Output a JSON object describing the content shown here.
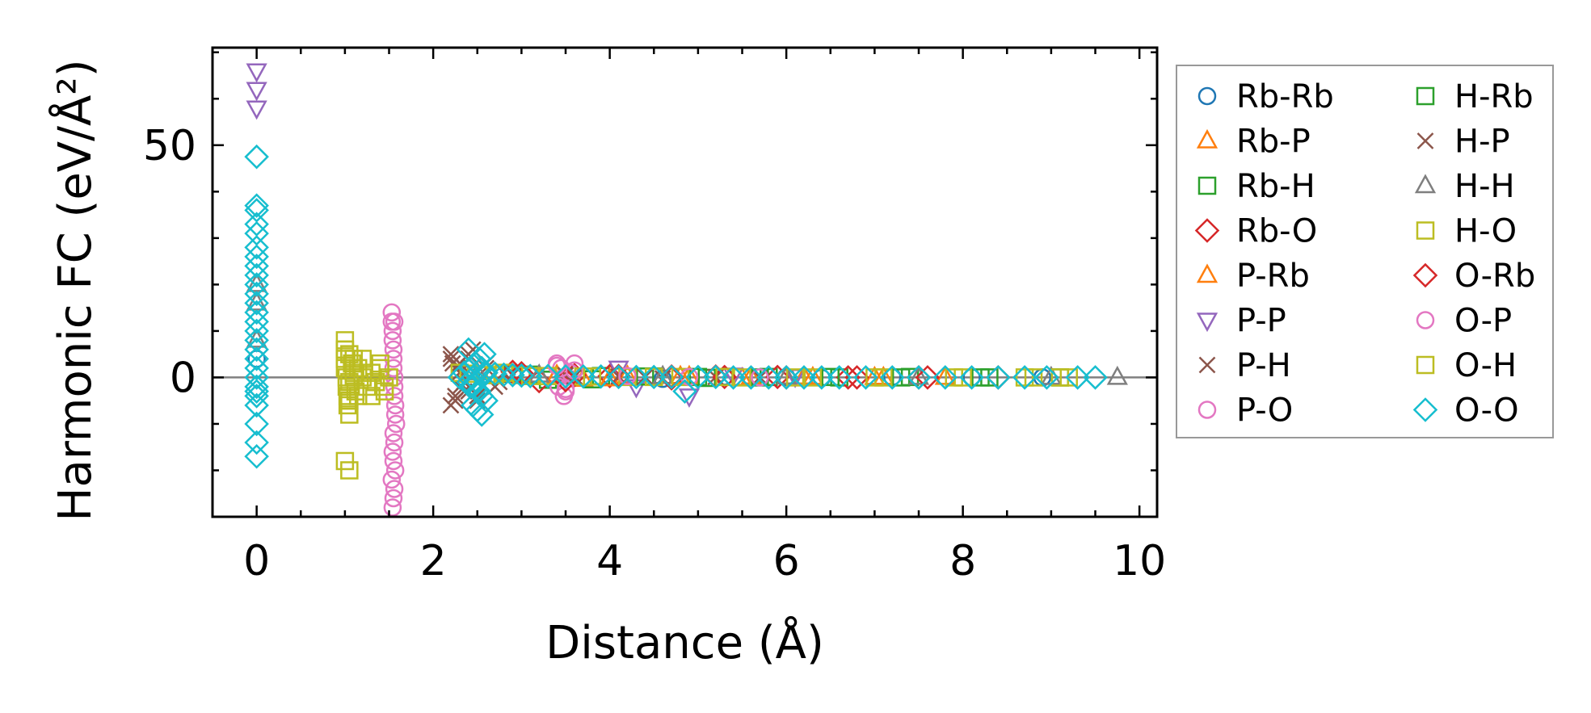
{
  "chart_data": {
    "type": "scatter",
    "xlabel": "Distance (Å)",
    "ylabel": "Harmonic FC (eV/Å²)",
    "xlim": [
      -0.5,
      10.2
    ],
    "ylim": [
      -30,
      71
    ],
    "xticks": [
      0,
      2,
      4,
      6,
      8,
      10
    ],
    "yticks": [
      0,
      50
    ],
    "zero_line": true,
    "legend_position": "outside-right",
    "legend_columns": 2,
    "series": [
      {
        "name": "Rb-Rb",
        "marker": "circle",
        "color": "#1f77b4",
        "x": [
          0,
          4.1,
          4.6,
          5.3,
          6.0,
          6.4,
          7.2,
          8.1,
          8.9
        ],
        "y": [
          4,
          0.2,
          -0.3,
          0.2,
          0.1,
          -0.1,
          0.1,
          0.0,
          0.0
        ]
      },
      {
        "name": "Rb-P",
        "marker": "triangle-up",
        "color": "#ff7f0e",
        "x": [
          3.4,
          3.7,
          4.2,
          4.9,
          5.5,
          6.2,
          7.0,
          7.8
        ],
        "y": [
          0.5,
          -0.4,
          0.3,
          0.2,
          -0.2,
          0.1,
          0.0,
          0.0
        ]
      },
      {
        "name": "Rb-H",
        "marker": "square",
        "color": "#2ca02c",
        "x": [
          2.9,
          3.3,
          3.9,
          4.5,
          5.1,
          5.8,
          6.6,
          7.4,
          8.3,
          9.1
        ],
        "y": [
          0.8,
          -0.5,
          0.3,
          0.2,
          -0.1,
          0.1,
          0.0,
          0.1,
          0.0,
          0.0
        ]
      },
      {
        "name": "Rb-O",
        "marker": "diamond",
        "color": "#d62728",
        "x": [
          2.9,
          3.2,
          3.6,
          4.0,
          4.7,
          5.2,
          5.9,
          6.7,
          7.5,
          8.4
        ],
        "y": [
          1.2,
          -0.8,
          0.5,
          0.3,
          -0.2,
          0.2,
          0.1,
          0.0,
          0.0,
          0.0
        ]
      },
      {
        "name": "P-Rb",
        "marker": "triangle-up",
        "color": "#ff7f0e",
        "x": [
          3.4,
          4.0,
          4.8,
          5.6,
          6.3,
          7.1
        ],
        "y": [
          0.4,
          -0.3,
          0.2,
          0.1,
          0.0,
          0.0
        ]
      },
      {
        "name": "P-P",
        "marker": "triangle-down",
        "color": "#9467bd",
        "x": [
          0,
          0,
          0,
          4.1,
          4.3,
          4.9,
          5.4,
          6.1
        ],
        "y": [
          66,
          62,
          58,
          2.0,
          -2.0,
          -4.0,
          0.5,
          0.2
        ]
      },
      {
        "name": "P-H",
        "marker": "x",
        "color": "#8c564b",
        "x": [
          2.2,
          2.2,
          2.22,
          2.25,
          2.28,
          2.3,
          2.3,
          2.35,
          2.4,
          2.4,
          2.45,
          2.5,
          2.6,
          2.7,
          2.8,
          3.5,
          4.1,
          4.6,
          5.2,
          5.7
        ],
        "y": [
          5,
          -6,
          3,
          -4,
          2,
          -2,
          1,
          -1,
          4,
          -3,
          6,
          -5,
          3,
          -2,
          1,
          0.5,
          0.2,
          -0.2,
          0.1,
          0.0
        ]
      },
      {
        "name": "P-O",
        "marker": "circle",
        "color": "#e377c2",
        "x": [
          1.53,
          1.53,
          1.54,
          1.54,
          1.55,
          1.55,
          1.55,
          1.56,
          1.56,
          1.56,
          1.57,
          1.57,
          1.58,
          1.55,
          1.56,
          1.54,
          1.55,
          1.57,
          1.53,
          1.56,
          1.55,
          1.54,
          1.56,
          3.4,
          3.45,
          3.5,
          3.55,
          3.6,
          3.42,
          3.48
        ],
        "y": [
          14,
          12,
          10,
          8,
          6,
          4,
          2,
          0,
          -2,
          -4,
          -6,
          -8,
          -10,
          -12,
          -14,
          -16,
          -18,
          -20,
          -22,
          -24,
          -26,
          -28,
          12,
          3,
          2,
          -3,
          1,
          3,
          -2,
          -4
        ]
      },
      {
        "name": "H-Rb",
        "marker": "square",
        "color": "#2ca02c",
        "x": [
          3.1,
          3.8,
          4.4,
          5.0,
          5.7,
          6.5,
          7.3,
          8.2
        ],
        "y": [
          0.6,
          -0.4,
          0.2,
          0.1,
          0.0,
          0.1,
          0.0,
          0.0
        ]
      },
      {
        "name": "H-P",
        "marker": "x",
        "color": "#8c564b",
        "x": [
          2.2,
          2.25,
          2.3,
          2.35,
          2.4,
          2.5,
          2.6,
          2.75,
          2.9,
          3.6,
          4.4
        ],
        "y": [
          4,
          -5,
          3,
          -3,
          5,
          -4,
          2,
          -1,
          0.5,
          0.2,
          0.1
        ]
      },
      {
        "name": "H-H",
        "marker": "triangle-up",
        "color": "#7f7f7f",
        "x": [
          0,
          0,
          0,
          2.5,
          3.2,
          4.6,
          6.0,
          7.5,
          9.0,
          9.75
        ],
        "y": [
          20,
          16,
          8,
          1,
          0.5,
          0.2,
          0.1,
          0.0,
          0.0,
          0.0
        ]
      },
      {
        "name": "H-O",
        "marker": "square",
        "color": "#bcbd22",
        "x": [
          1.0,
          1.0,
          1.0,
          1.0,
          1.02,
          1.02,
          1.03,
          1.03,
          1.05,
          1.05,
          1.05,
          1.08,
          1.1,
          1.12,
          1.15,
          1.2,
          1.25,
          1.3,
          1.35,
          1.4,
          1.45,
          1.5,
          1.2,
          1.3,
          1.4,
          1.45,
          1.0,
          1.05,
          1.1,
          2.3,
          2.6,
          2.8,
          3.0,
          3.3,
          3.7,
          4.2,
          4.8,
          5.5,
          6.3,
          7.1,
          8.0,
          8.8,
          9.1
        ],
        "y": [
          8,
          6,
          4,
          2,
          0,
          -2,
          -4,
          -6,
          -8,
          5,
          -1,
          3,
          1,
          -3,
          2,
          0,
          -2,
          1,
          -1,
          3,
          -3,
          0,
          4,
          -4,
          2,
          -2,
          -18,
          -20,
          0,
          1,
          0.5,
          1,
          0.5,
          0.3,
          0.2,
          0.1,
          0.1,
          0.0,
          0.0,
          0.0,
          0.0,
          0.0,
          0.0
        ]
      },
      {
        "name": "O-Rb",
        "marker": "diamond",
        "color": "#d62728",
        "x": [
          3.0,
          3.5,
          4.1,
          4.7,
          5.3,
          6.0,
          6.8,
          7.6
        ],
        "y": [
          0.9,
          -0.6,
          0.3,
          0.2,
          0.1,
          0.0,
          0.0,
          0.0
        ]
      },
      {
        "name": "O-P",
        "marker": "circle",
        "color": "#e377c2",
        "x": [
          3.4,
          3.5,
          3.6,
          4.2,
          4.9,
          5.7
        ],
        "y": [
          2.5,
          -2.5,
          1.5,
          0.3,
          0.1,
          0.0
        ]
      },
      {
        "name": "O-H",
        "marker": "square",
        "color": "#bcbd22",
        "x": [
          1.0,
          1.05,
          1.1,
          1.15,
          2.4,
          2.7,
          3.1,
          3.8,
          4.5,
          5.3,
          6.1,
          7.0,
          7.9,
          8.7,
          9.2
        ],
        "y": [
          6,
          -5,
          4,
          -4,
          0.8,
          0.5,
          0.3,
          0.2,
          0.1,
          0.1,
          0.0,
          0.0,
          0.0,
          0.0,
          0.0
        ]
      },
      {
        "name": "O-O",
        "marker": "diamond",
        "color": "#17becf",
        "x": [
          0,
          0,
          0,
          0,
          0,
          0,
          0,
          0,
          0,
          0,
          0,
          0,
          0,
          0,
          0,
          0,
          0,
          0,
          0,
          0,
          0,
          0,
          0,
          0,
          0,
          0,
          0,
          2.3,
          2.35,
          2.4,
          2.42,
          2.45,
          2.48,
          2.5,
          2.52,
          2.55,
          2.58,
          2.6,
          2.4,
          2.45,
          2.5,
          2.55,
          2.6,
          2.45,
          2.5,
          2.55,
          2.42,
          2.48,
          2.52,
          2.58,
          2.7,
          2.8,
          2.9,
          3.0,
          3.1,
          3.3,
          3.5,
          3.7,
          3.9,
          4.1,
          4.3,
          4.5,
          4.7,
          4.85,
          5.0,
          5.2,
          5.4,
          5.6,
          5.8,
          6.0,
          6.2,
          6.4,
          6.6,
          6.9,
          7.2,
          7.5,
          7.8,
          8.1,
          8.4,
          8.7,
          8.95,
          9.3,
          9.5
        ],
        "y": [
          47.5,
          37,
          36,
          33,
          31,
          28,
          26,
          24,
          22,
          20,
          18,
          16,
          14,
          12,
          10,
          8,
          6,
          4,
          2,
          0,
          -2,
          -4,
          -6,
          -10,
          -14,
          -17,
          -3,
          0,
          1,
          -1,
          2,
          -2,
          3,
          -3,
          4,
          -4,
          5,
          -5,
          6,
          -6,
          -7,
          -8,
          1,
          0,
          -1,
          2,
          -2,
          3,
          -3,
          1,
          0.8,
          0.6,
          0.5,
          0.4,
          0.3,
          0.3,
          0.2,
          0.2,
          0.2,
          0.1,
          0.1,
          0.1,
          0.1,
          -3,
          0.1,
          0.1,
          0.0,
          0.0,
          0.0,
          0.0,
          0.0,
          0.0,
          0.0,
          0.0,
          0.0,
          0.0,
          0.0,
          0.0,
          0.0,
          0.0,
          0.0,
          0.0,
          0.0
        ]
      }
    ]
  }
}
